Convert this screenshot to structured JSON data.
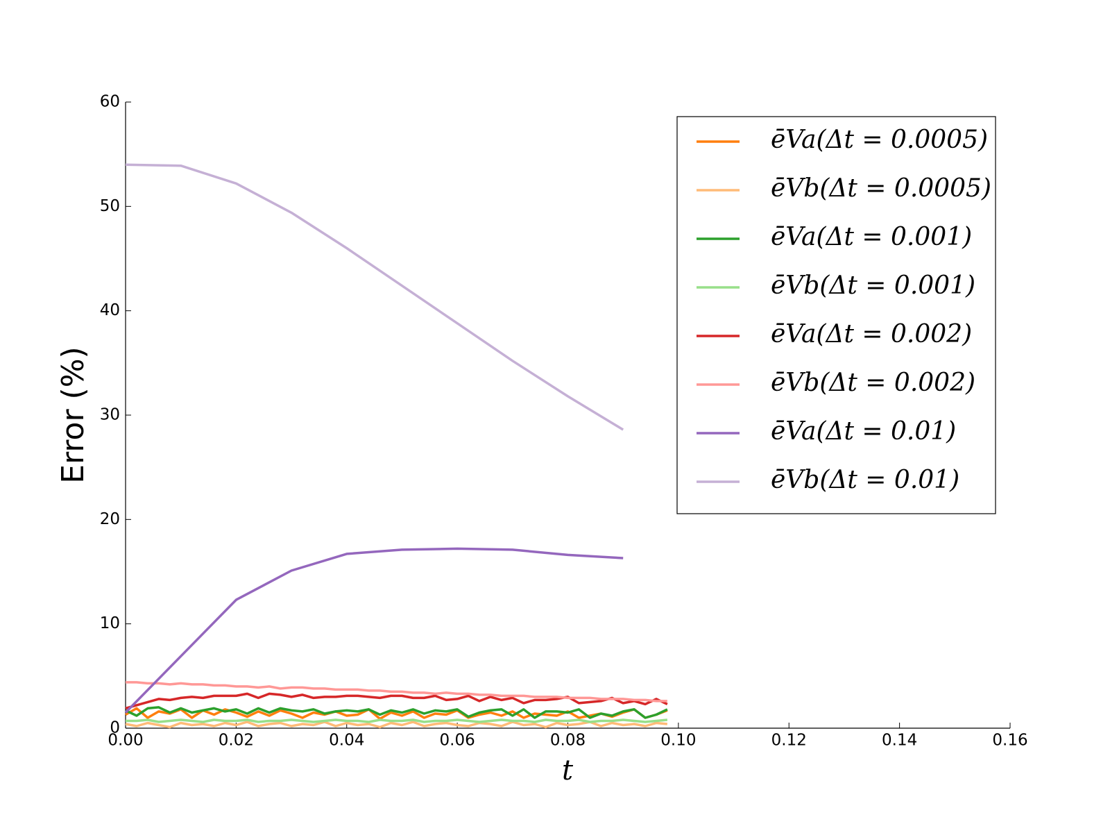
{
  "chart_data": {
    "type": "line",
    "x_label": "t",
    "y_label": "Error (%)",
    "xlim": [
      0,
      0.16
    ],
    "ylim": [
      0,
      60
    ],
    "xticks": [
      {
        "value": 0,
        "label": "0.00"
      },
      {
        "value": 0.02,
        "label": "0.02"
      },
      {
        "value": 0.04,
        "label": "0.04"
      },
      {
        "value": 0.06,
        "label": "0.06"
      },
      {
        "value": 0.08,
        "label": "0.08"
      },
      {
        "value": 0.1,
        "label": "0.10"
      },
      {
        "value": 0.12,
        "label": "0.12"
      },
      {
        "value": 0.14,
        "label": "0.14"
      },
      {
        "value": 0.16,
        "label": "0.16"
      }
    ],
    "yticks": [
      0,
      10,
      20,
      30,
      40,
      50,
      60
    ],
    "grid": false,
    "legend_position": "upper right",
    "x": [
      0,
      0.002,
      0.004,
      0.006,
      0.008,
      0.01,
      0.012,
      0.014,
      0.016,
      0.018,
      0.02,
      0.022,
      0.024,
      0.026,
      0.028,
      0.03,
      0.032,
      0.034,
      0.036,
      0.038,
      0.04,
      0.042,
      0.044,
      0.046,
      0.048,
      0.05,
      0.052,
      0.054,
      0.056,
      0.058,
      0.06,
      0.062,
      0.064,
      0.066,
      0.068,
      0.07,
      0.072,
      0.074,
      0.076,
      0.078,
      0.08,
      0.082,
      0.084,
      0.086,
      0.088,
      0.09,
      0.092,
      0.094,
      0.096,
      0.098
    ],
    "series": [
      {
        "name": "ēVa(Δt = 0.0005)",
        "color": "#ff7f0e",
        "values": [
          1.3,
          1.9,
          1.0,
          1.6,
          1.4,
          1.8,
          1.0,
          1.7,
          1.3,
          1.8,
          1.5,
          1.1,
          1.6,
          1.2,
          1.7,
          1.4,
          1.0,
          1.5,
          1.3,
          1.6,
          1.2,
          1.3,
          1.8,
          0.9,
          1.5,
          1.2,
          1.6,
          1.0,
          1.4,
          1.3,
          1.7,
          1.0,
          1.3,
          1.5,
          1.2,
          1.6,
          1.0,
          1.4,
          1.3,
          1.2,
          1.6,
          1.0,
          1.2,
          1.4,
          1.1,
          1.5,
          1.8,
          1.0,
          1.3,
          1.7
        ]
      },
      {
        "name": "ēVb(Δt = 0.0005)",
        "color": "#ffbb78",
        "values": [
          0.4,
          0.2,
          0.5,
          0.3,
          0.1,
          0.5,
          0.3,
          0.4,
          0.2,
          0.5,
          0.3,
          0.6,
          0.2,
          0.4,
          0.5,
          0.2,
          0.4,
          0.3,
          0.6,
          0.2,
          0.5,
          0.3,
          0.4,
          0.1,
          0.5,
          0.3,
          0.6,
          0.2,
          0.4,
          0.5,
          0.3,
          0.2,
          0.5,
          0.4,
          0.2,
          0.6,
          0.3,
          0.4,
          0.1,
          0.5,
          0.3,
          0.4,
          0.6,
          0.2,
          0.5,
          0.3,
          0.4,
          0.2,
          0.5,
          0.4
        ]
      },
      {
        "name": "ēVa(Δt = 0.001)",
        "color": "#2ca02c",
        "values": [
          1.7,
          1.2,
          1.9,
          2.0,
          1.5,
          1.9,
          1.5,
          1.7,
          1.9,
          1.6,
          1.8,
          1.4,
          1.9,
          1.5,
          1.9,
          1.7,
          1.6,
          1.8,
          1.4,
          1.6,
          1.7,
          1.6,
          1.8,
          1.3,
          1.7,
          1.5,
          1.8,
          1.4,
          1.7,
          1.6,
          1.8,
          1.1,
          1.5,
          1.7,
          1.8,
          1.2,
          1.8,
          1.0,
          1.6,
          1.6,
          1.5,
          1.8,
          1.0,
          1.4,
          1.2,
          1.6,
          1.8,
          1.0,
          1.3,
          1.8
        ]
      },
      {
        "name": "ēVb(Δt = 0.001)",
        "color": "#98df8a",
        "values": [
          0.7,
          0.7,
          0.8,
          0.6,
          0.7,
          0.8,
          0.7,
          0.6,
          0.8,
          0.7,
          0.7,
          0.8,
          0.6,
          0.7,
          0.7,
          0.8,
          0.7,
          0.6,
          0.7,
          0.8,
          0.7,
          0.7,
          0.6,
          0.8,
          0.7,
          0.7,
          0.8,
          0.6,
          0.7,
          0.7,
          0.8,
          0.7,
          0.6,
          0.7,
          0.8,
          0.7,
          0.7,
          0.6,
          0.8,
          0.7,
          0.7,
          0.8,
          0.6,
          0.7,
          0.7,
          0.8,
          0.7,
          0.6,
          0.7,
          0.8
        ]
      },
      {
        "name": "ēVa(Δt = 0.002)",
        "color": "#d62728",
        "values": [
          1.9,
          2.2,
          2.5,
          2.8,
          2.7,
          2.9,
          3.0,
          2.9,
          3.1,
          3.1,
          3.1,
          3.3,
          2.9,
          3.3,
          3.2,
          3.0,
          3.2,
          2.9,
          3.0,
          3.0,
          3.1,
          3.1,
          3.0,
          2.9,
          3.1,
          3.1,
          2.9,
          2.9,
          3.1,
          2.7,
          2.8,
          3.1,
          2.6,
          3.0,
          2.7,
          2.9,
          2.4,
          2.7,
          2.7,
          2.8,
          3.0,
          2.4,
          2.5,
          2.6,
          2.9,
          2.4,
          2.6,
          2.3,
          2.8,
          2.3
        ]
      },
      {
        "name": "ēVb(Δt = 0.002)",
        "color": "#ff9896",
        "values": [
          4.4,
          4.4,
          4.3,
          4.3,
          4.2,
          4.3,
          4.2,
          4.2,
          4.1,
          4.1,
          4.0,
          4.0,
          3.9,
          4.0,
          3.8,
          3.9,
          3.9,
          3.8,
          3.8,
          3.7,
          3.7,
          3.7,
          3.6,
          3.6,
          3.5,
          3.5,
          3.4,
          3.4,
          3.3,
          3.4,
          3.3,
          3.3,
          3.2,
          3.2,
          3.1,
          3.1,
          3.1,
          3.0,
          3.0,
          3.0,
          2.9,
          2.9,
          2.9,
          2.8,
          2.8,
          2.8,
          2.7,
          2.7,
          2.6,
          2.6
        ]
      },
      {
        "name": "ēVa(Δt = 0.01)",
        "color": "#9467bd",
        "x": [
          0,
          0.01,
          0.02,
          0.03,
          0.04,
          0.05,
          0.06,
          0.07,
          0.08,
          0.09
        ],
        "values": [
          1.5,
          6.9,
          12.3,
          15.1,
          16.7,
          17.1,
          17.2,
          17.1,
          16.6,
          16.3
        ]
      },
      {
        "name": "ēVb(Δt = 0.01)",
        "color": "#c5b0d5",
        "x": [
          0,
          0.01,
          0.02,
          0.03,
          0.04,
          0.05,
          0.06,
          0.07,
          0.08,
          0.09
        ],
        "values": [
          54.0,
          53.9,
          52.2,
          49.4,
          46.0,
          42.4,
          38.8,
          35.2,
          31.8,
          28.6
        ]
      }
    ]
  }
}
